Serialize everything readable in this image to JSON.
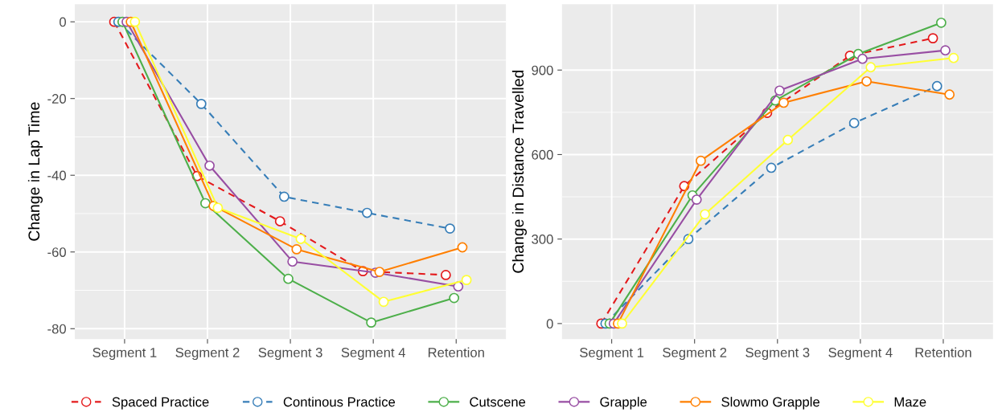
{
  "chart_data": [
    {
      "type": "line",
      "ylabel": "Change in Lap Time",
      "categories": [
        "Segment 1",
        "Segment 2",
        "Segment 3",
        "Segment 4",
        "Retention"
      ],
      "ylim": [
        -82.7,
        4.6
      ],
      "yticks": [
        {
          "value": -80,
          "label": "-80"
        },
        {
          "value": -60,
          "label": "-60"
        },
        {
          "value": -40,
          "label": "-40"
        },
        {
          "value": -20,
          "label": "-20"
        },
        0
      ],
      "grid": true,
      "marker": "circle",
      "legend": false,
      "series": [
        {
          "color": "#e41a1c",
          "line_style": "dashed",
          "values": [
            0,
            -40.2,
            -52,
            -65,
            -66
          ]
        },
        {
          "color": "#377eb8",
          "line_style": "dashed",
          "values": [
            0,
            -21.4,
            -45.6,
            -49.8,
            -53.9
          ]
        },
        {
          "color": "#4daf4a",
          "line_style": "solid",
          "values": [
            0,
            -47.3,
            -67,
            -78.4,
            -72
          ]
        },
        {
          "color": "#984ea3",
          "line_style": "solid",
          "values": [
            0,
            -37.5,
            -62.5,
            -65.4,
            -69
          ]
        },
        {
          "color": "#ff7f00",
          "line_style": "solid",
          "values": [
            0,
            -48,
            -59.3,
            -65.2,
            -58.8
          ]
        },
        {
          "color": "#ffff33",
          "line_style": "solid",
          "values": [
            0,
            -48.5,
            -56.6,
            -73,
            -67.3
          ]
        }
      ]
    },
    {
      "type": "line",
      "ylabel": "Change in Distance Travelled",
      "categories": [
        "Segment 1",
        "Segment 2",
        "Segment 3",
        "Segment 4",
        "Retention"
      ],
      "ylim": [
        -55,
        1134
      ],
      "yticks": [
        0,
        300,
        600,
        900
      ],
      "grid": true,
      "marker": "circle",
      "legend": "bottom",
      "series": [
        {
          "name": "Spaced Practice",
          "color": "#e41a1c",
          "line_style": "dashed",
          "values": [
            0,
            488,
            748,
            951,
            1013
          ]
        },
        {
          "name": "Continous Practice",
          "color": "#377eb8",
          "line_style": "dashed",
          "values": [
            0,
            300,
            553,
            712,
            843
          ]
        },
        {
          "name": "Cutscene",
          "color": "#4daf4a",
          "line_style": "solid",
          "values": [
            0,
            455,
            792,
            957,
            1068
          ]
        },
        {
          "name": "Grapple",
          "color": "#984ea3",
          "line_style": "solid",
          "values": [
            0,
            440,
            827,
            940,
            970
          ]
        },
        {
          "name": "Slowmo Grapple",
          "color": "#ff7f00",
          "line_style": "solid",
          "values": [
            0,
            578,
            784,
            860,
            813
          ]
        },
        {
          "name": "Maze",
          "color": "#ffff33",
          "line_style": "solid",
          "values": [
            0,
            388,
            652,
            910,
            943
          ]
        }
      ]
    }
  ]
}
